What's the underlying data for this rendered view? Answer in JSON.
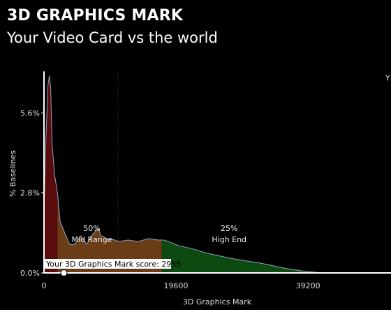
{
  "header": {
    "title": "3D GRAPHICS MARK",
    "subtitle": "Your Video Card vs the world",
    "edge_label": "Y"
  },
  "chart_data": {
    "type": "area",
    "xlabel": "3D Graphics Mark",
    "ylabel": "% Baselines",
    "xlim": [
      0,
      50700
    ],
    "ylim": [
      0,
      7.1
    ],
    "x_ticks": [
      {
        "value": 0,
        "label": "0"
      },
      {
        "value": 19600,
        "label": "19600"
      },
      {
        "value": 39200,
        "label": "39200"
      }
    ],
    "y_ticks": [
      {
        "value": 0,
        "label": "0.0%"
      },
      {
        "value": 2.8,
        "label": "2.8%"
      },
      {
        "value": 5.6,
        "label": "5.6%"
      }
    ],
    "median_marker": 11000,
    "distribution": {
      "x": [
        0,
        300,
        600,
        800,
        1000,
        1200,
        1600,
        2000,
        2400,
        3000,
        3800,
        4500,
        5500,
        6300,
        7200,
        8000,
        8500,
        9000,
        9500,
        10000,
        11000,
        12500,
        14000,
        15500,
        17000,
        17800,
        18500,
        20000,
        22000,
        24000,
        26000,
        28000,
        30000,
        32000,
        34000,
        36000,
        38000,
        39000,
        40000,
        41000
      ],
      "y": [
        2.2,
        4.8,
        6.6,
        6.9,
        6.5,
        4.5,
        3.4,
        2.8,
        1.8,
        1.45,
        1.0,
        1.0,
        1.3,
        1.0,
        1.35,
        1.55,
        1.3,
        1.25,
        1.15,
        1.2,
        1.1,
        1.15,
        1.1,
        1.2,
        1.15,
        1.15,
        1.1,
        0.95,
        0.85,
        0.7,
        0.6,
        0.5,
        0.42,
        0.35,
        0.25,
        0.15,
        0.08,
        0.05,
        0.03,
        0.0
      ]
    },
    "segments": [
      {
        "name": "low",
        "from": 0,
        "to": 2000,
        "color": "#5a0c0c"
      },
      {
        "name": "mid",
        "from": 2000,
        "to": 17500,
        "color": "#6b3d16",
        "pct": "50%",
        "label": "Mid Range"
      },
      {
        "name": "high",
        "from": 17500,
        "to": 41000,
        "color": "#0d4a12",
        "pct": "25%",
        "label": "High End"
      }
    ],
    "your_score": {
      "value": 2955,
      "label": "Your 3D Graphics Mark score: 2955"
    }
  }
}
